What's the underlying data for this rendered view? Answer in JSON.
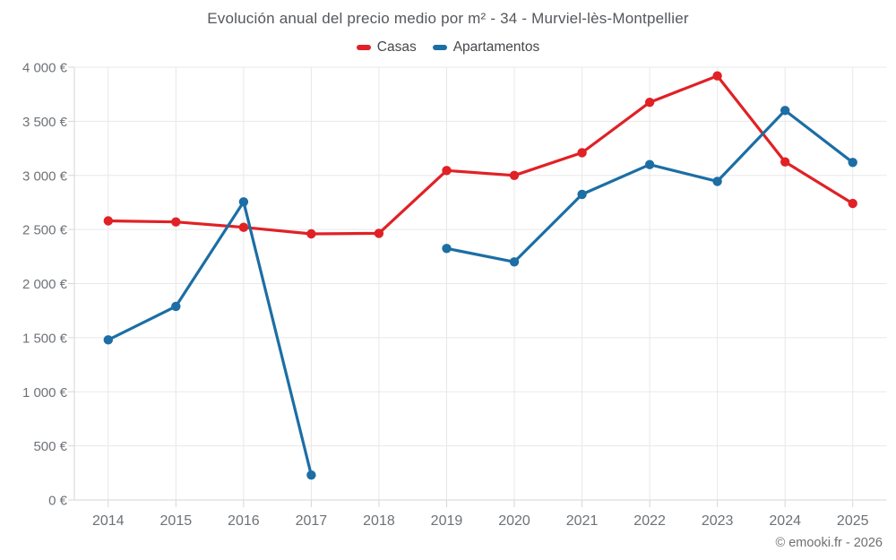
{
  "chart_data": {
    "type": "line",
    "title": "Evolución anual del precio medio por m² - 34 - Murviel-lès-Montpellier",
    "categories": [
      "2014",
      "2015",
      "2016",
      "2017",
      "2018",
      "2019",
      "2020",
      "2021",
      "2022",
      "2023",
      "2024",
      "2025"
    ],
    "series": [
      {
        "name": "Casas",
        "color": "#e02126",
        "values": [
          2580,
          2570,
          2520,
          2460,
          2465,
          3045,
          3000,
          3210,
          3675,
          3920,
          3125,
          2740
        ]
      },
      {
        "name": "Apartamentos",
        "color": "#1c6ea4",
        "values": [
          1480,
          1790,
          2755,
          230,
          null,
          2325,
          2200,
          2825,
          3100,
          2945,
          3600,
          3120
        ]
      }
    ],
    "ylim": [
      0,
      4000
    ],
    "ytick_step": 500,
    "y_suffix": "€",
    "grid": true,
    "legend_position": "top",
    "footer": "© emooki.fr - 2026"
  },
  "style": {
    "background": "#ffffff",
    "grid_color": "#e8e8e8",
    "axis_color": "#d6d6d6",
    "axis_text_color": "#6e7276",
    "title_color": "#54575b",
    "legend_text_color": "#45484c",
    "footer_color": "#6d7073"
  }
}
